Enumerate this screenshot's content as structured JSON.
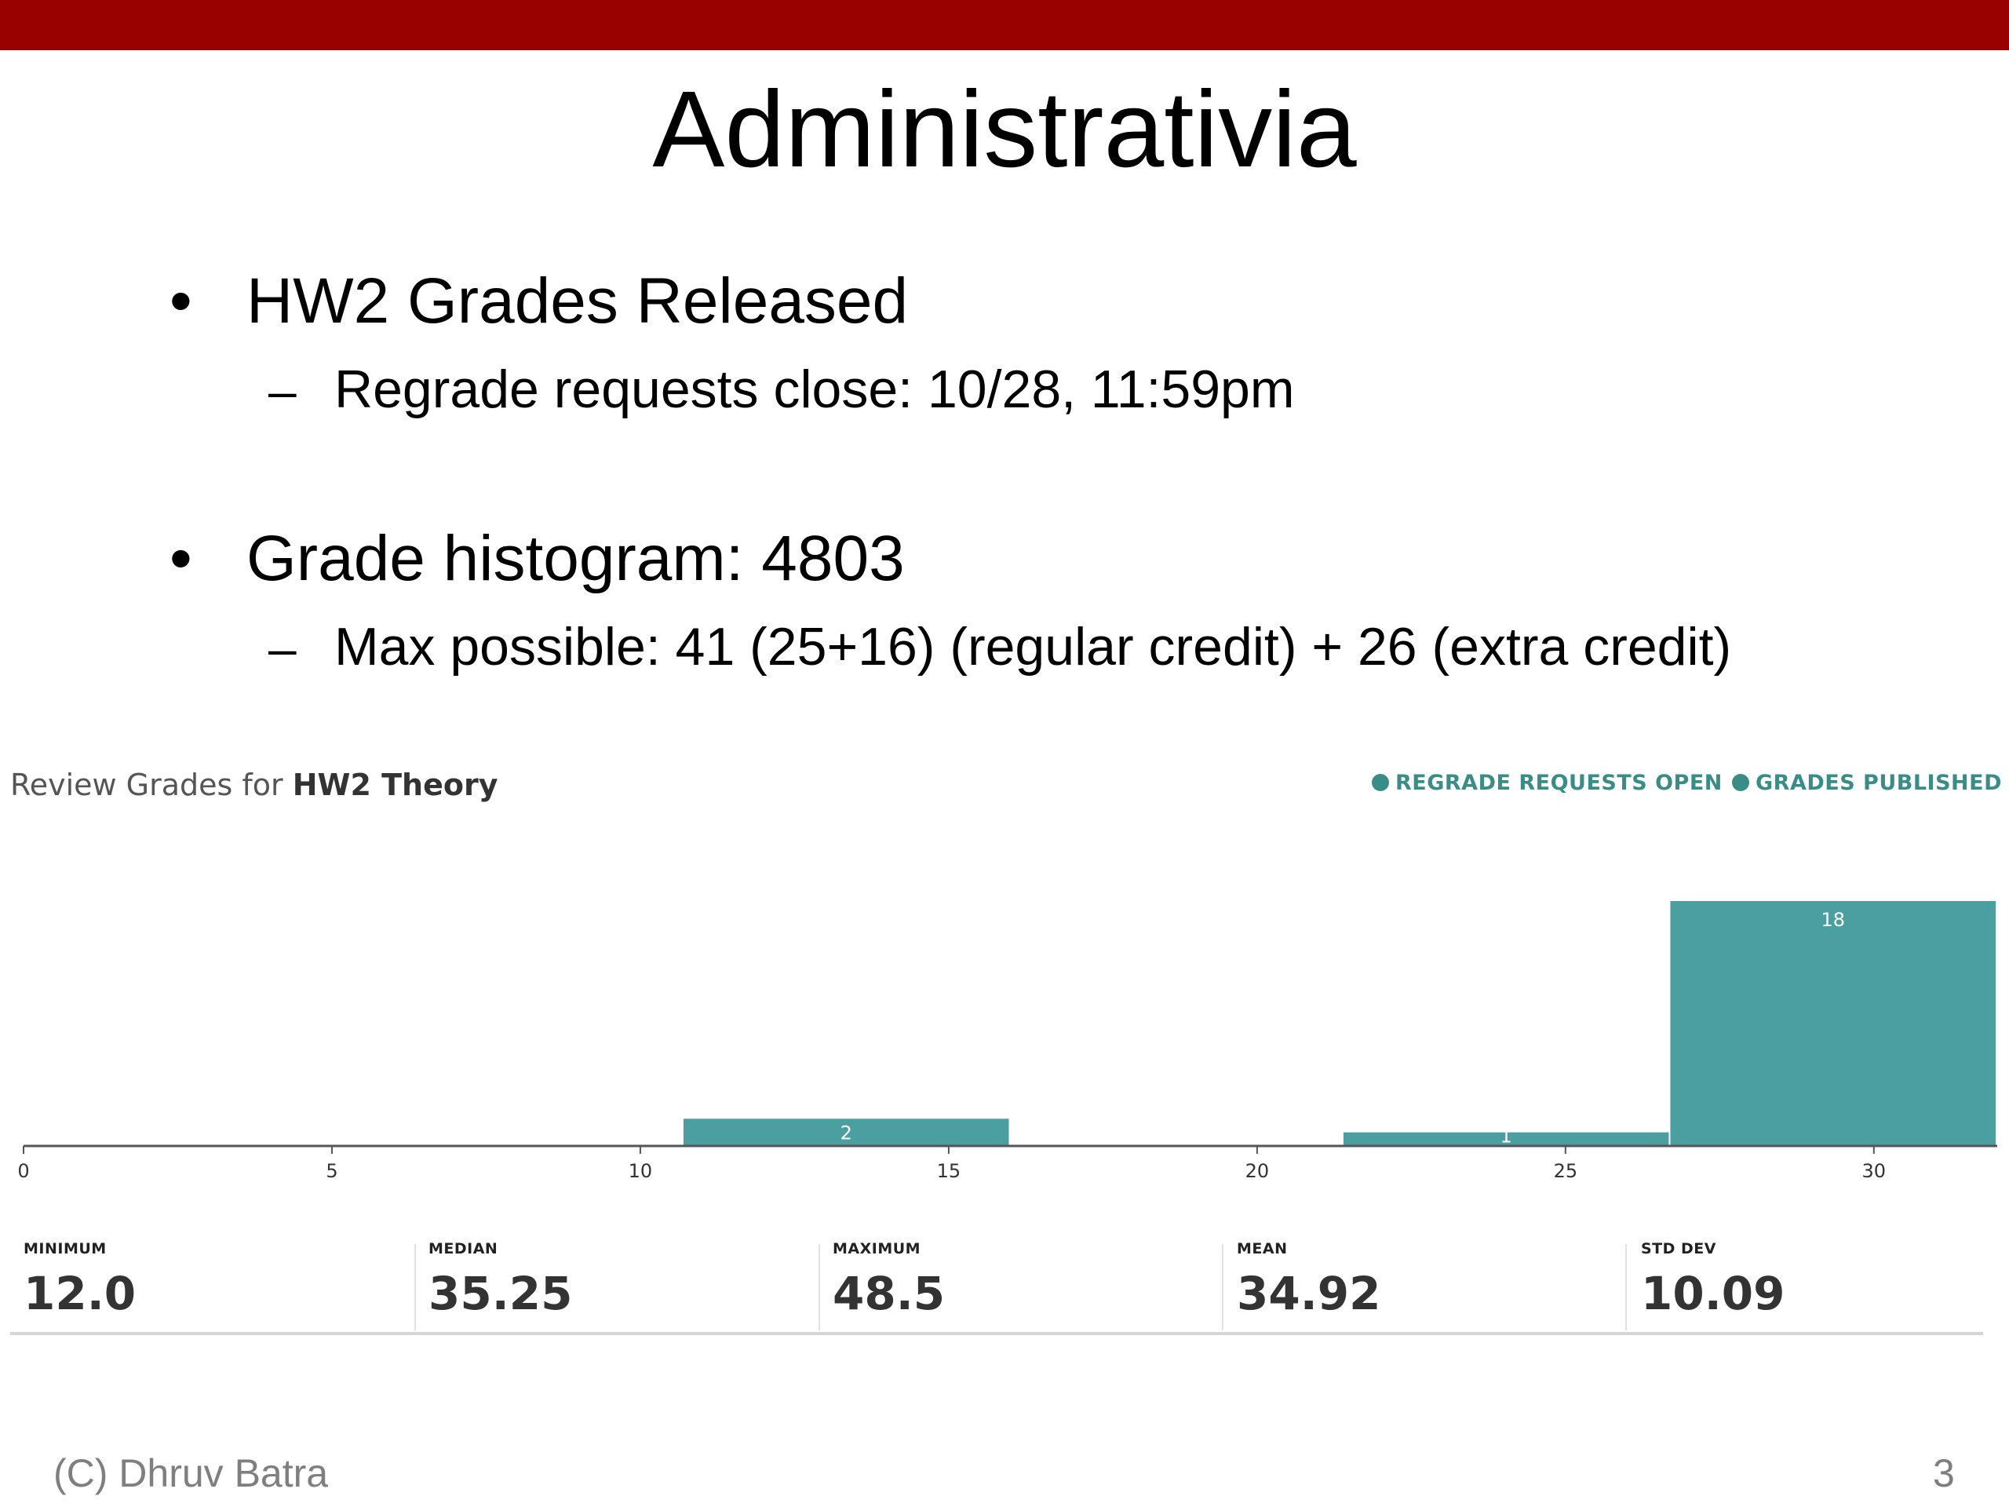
{
  "slide": {
    "title": "Administrativia",
    "bullets": [
      {
        "text": "HW2 Grades Released",
        "sub": "Regrade requests close: 10/28, 11:59pm"
      },
      {
        "text": "Grade histogram: 4803",
        "sub": "Max possible: 41 (25+16) (regular credit) + 26 (extra credit)"
      }
    ],
    "bullet_char": "•",
    "dash_char": "–",
    "footer_left": "(C) Dhruv Batra",
    "page_number": "3",
    "accent_color": "#990000"
  },
  "panel": {
    "title_prefix": "Review Grades for ",
    "title_bold": "HW2 Theory",
    "status": [
      {
        "label": "REGRADE REQUESTS OPEN"
      },
      {
        "label": "GRADES PUBLISHED"
      }
    ],
    "status_color": "#3a8c87",
    "stats": [
      {
        "label": "MINIMUM",
        "value": "12.0"
      },
      {
        "label": "MEDIAN",
        "value": "35.25"
      },
      {
        "label": "MAXIMUM",
        "value": "48.5"
      },
      {
        "label": "MEAN",
        "value": "34.92"
      },
      {
        "label": "STD DEV",
        "value": "10.09"
      }
    ]
  },
  "chart_data": {
    "type": "bar",
    "xlim": [
      0,
      32
    ],
    "x_ticks": [
      0,
      5,
      10,
      15,
      20,
      25,
      30
    ],
    "bins": [
      {
        "x0": 10.7,
        "x1": 16.0,
        "count": 2,
        "label": "2"
      },
      {
        "x0": 21.4,
        "x1": 26.7,
        "count": 1,
        "label": "1"
      },
      {
        "x0": 26.7,
        "x1": 32.0,
        "count": 18,
        "label": "18"
      }
    ],
    "bar_color": "#4c9fa0",
    "title": "",
    "xlabel": "",
    "ylabel": ""
  }
}
